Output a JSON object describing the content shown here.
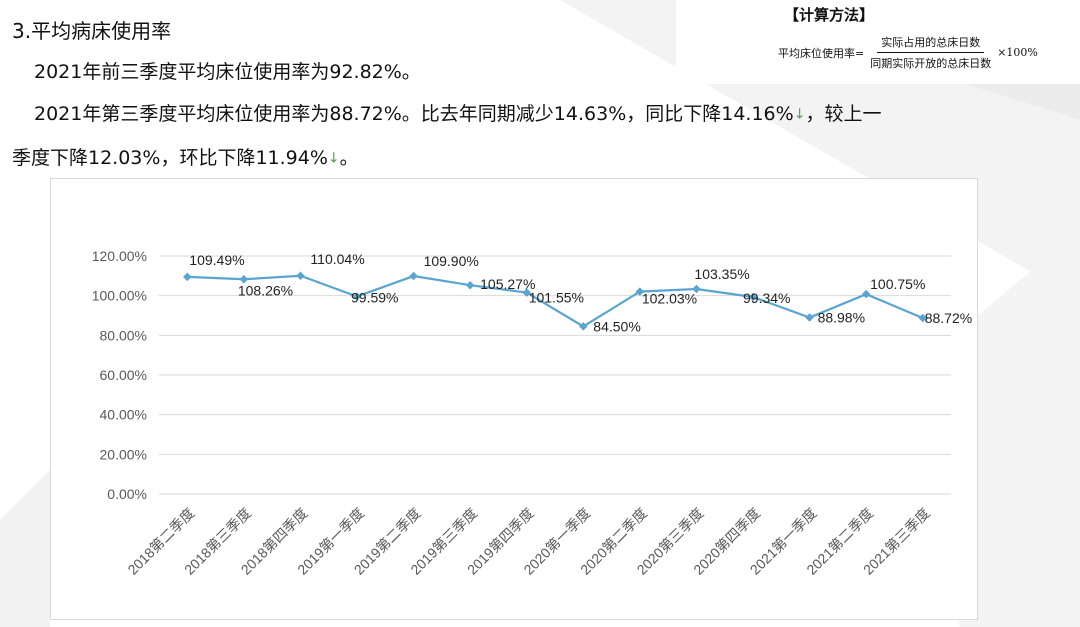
{
  "heading": "3.平均病床使用率",
  "paragraph1": "2021年前三季度平均床位使用率为92.82%。",
  "paragraph2": {
    "line1_a": "2021年第三季度平均床位使用率为88.72%。比去年同期减少14.63%，同比下降14.16%",
    "line1_b": "，较上一",
    "line2_a": "季度下降12.03%，环比下降11.94%",
    "line2_b": "。",
    "arrow": "↓"
  },
  "method": {
    "title": "【计算方法】",
    "label": "平均床位使用率=",
    "numerator": "实际占用的总床日数",
    "denominator": "同期实际开放的总床日数",
    "multiplier": "×100%"
  },
  "colors": {
    "line": "#5aa5d0",
    "grid": "#d9d9d9",
    "arrow": "#4aa84a"
  },
  "chart_data": {
    "type": "line",
    "title": "",
    "xlabel": "",
    "ylabel": "",
    "ylim": [
      0,
      120
    ],
    "yticks": [
      "0.00%",
      "20.00%",
      "40.00%",
      "60.00%",
      "80.00%",
      "100.00%",
      "120.00%"
    ],
    "categories": [
      "2018第二季度",
      "2018第三季度",
      "2018第四季度",
      "2019第一季度",
      "2019第二季度",
      "2019第三季度",
      "2019第四季度",
      "2020第一季度",
      "2020第二季度",
      "2020第三季度",
      "2020第四季度",
      "2021第一季度",
      "2021第二季度",
      "2021第三季度"
    ],
    "series": [
      {
        "name": "平均病床使用率",
        "values": [
          109.49,
          108.26,
          110.04,
          99.59,
          109.9,
          105.27,
          101.55,
          84.5,
          102.03,
          103.35,
          99.34,
          88.98,
          100.75,
          88.72
        ],
        "labels": [
          "109.49%",
          "108.26%",
          "110.04%",
          "99.59%",
          "109.90%",
          "105.27%",
          "101.55%",
          "84.50%",
          "102.03%",
          "103.35%",
          "99.34%",
          "88.98%",
          "100.75%",
          "88.72%"
        ]
      }
    ],
    "grid": true,
    "legend": "none"
  }
}
